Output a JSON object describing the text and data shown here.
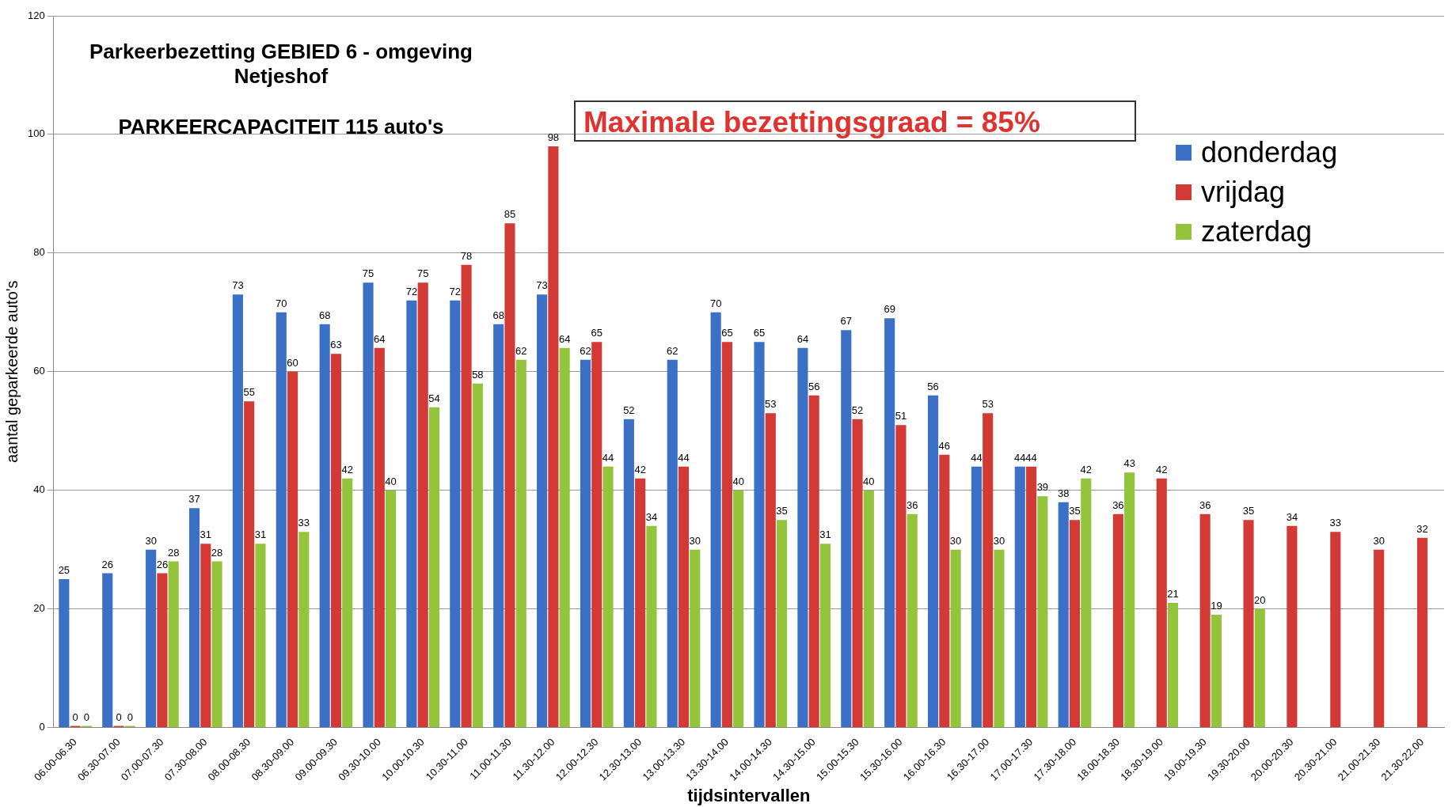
{
  "chart_data": {
    "type": "bar",
    "title": "Parkeerbezetting GEBIED 6 - omgeving Netjeshof",
    "subtitle": "PARKEERCAPACITEIT 115 auto's",
    "xlabel": "tijdsintervallen",
    "ylabel": "aantal geparkeerde auto's",
    "annotations": [
      "Maximale bezettingsgraad = 85%"
    ],
    "categories": [
      "06.00-06.30",
      "06.30-07.00",
      "07.00-07.30",
      "07.30-08.00",
      "08.00-08.30",
      "08.30-09.00",
      "09.00-09.30",
      "09.30-10.00",
      "10.00-10.30",
      "10.30-11.00",
      "11.00-11.30",
      "11.30-12.00",
      "12.00-12.30",
      "12.30-13.00",
      "13.00-13.30",
      "13.30-14.00",
      "14.00-14.30",
      "14.30-15.00",
      "15.00-15.30",
      "15.30-16.00",
      "16.00-16.30",
      "16.30-17.00",
      "17.00-17.30",
      "17.30-18.00",
      "18.00-18.30",
      "18.30-19.00",
      "19.00-19.30",
      "19.30-20.00",
      "20.00-20.30",
      "20.30-21.00",
      "21.00-21.30",
      "21.30-22.00"
    ],
    "series": [
      {
        "name": "donderdag",
        "color": "#3b70c6",
        "values": [
          25,
          26,
          30,
          37,
          73,
          70,
          68,
          75,
          72,
          72,
          68,
          73,
          62,
          52,
          62,
          70,
          65,
          64,
          67,
          69,
          56,
          44,
          44,
          38,
          null,
          null,
          null,
          null,
          null,
          null,
          null,
          null
        ]
      },
      {
        "name": "vrijdag",
        "color": "#d43a35",
        "values": [
          0,
          0,
          26,
          31,
          55,
          60,
          63,
          64,
          75,
          78,
          85,
          98,
          65,
          42,
          44,
          65,
          53,
          56,
          52,
          51,
          46,
          53,
          44,
          35,
          36,
          42,
          36,
          35,
          34,
          33,
          30,
          32
        ]
      },
      {
        "name": "zaterdag",
        "color": "#93c43b",
        "values": [
          0,
          0,
          28,
          28,
          31,
          33,
          42,
          40,
          54,
          58,
          62,
          64,
          44,
          34,
          30,
          40,
          35,
          31,
          40,
          36,
          30,
          30,
          39,
          42,
          43,
          21,
          19,
          20,
          null,
          null,
          null,
          null
        ]
      }
    ],
    "ylim": [
      0,
      120
    ],
    "yticks": [
      0,
      20,
      40,
      60,
      80,
      100,
      120
    ],
    "grid": "y",
    "legend": "top right",
    "data_labels": true
  }
}
